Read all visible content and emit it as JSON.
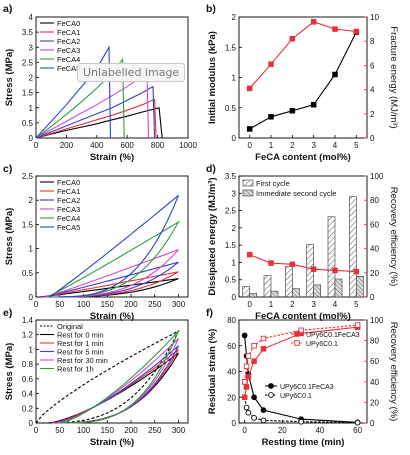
{
  "tooltip": "Unlabelled image",
  "chart_data": [
    {
      "panel": "a)",
      "type": "line",
      "xlabel": "Strain (%)",
      "ylabel": "Stress (MPa)",
      "xlim": [
        0,
        1000
      ],
      "ylim": [
        0,
        4.0
      ],
      "xticks": [
        0,
        200,
        400,
        600,
        800,
        1000
      ],
      "yticks": [
        0,
        0.5,
        1.0,
        1.5,
        2.0,
        2.5,
        3.0,
        3.5,
        4.0
      ],
      "legend_position": "top-left",
      "series": [
        {
          "name": "FeCA0",
          "color": "#000000",
          "x": [
            0,
            100,
            200,
            300,
            400,
            500,
            600,
            700,
            810,
            830
          ],
          "y": [
            0,
            0.13,
            0.25,
            0.36,
            0.47,
            0.6,
            0.72,
            0.86,
            1.0,
            0
          ]
        },
        {
          "name": "FeCA1",
          "color": "#e8303a",
          "x": [
            0,
            100,
            200,
            300,
            400,
            500,
            600,
            700,
            780,
            790
          ],
          "y": [
            0,
            0.15,
            0.3,
            0.45,
            0.6,
            0.75,
            0.92,
            1.1,
            1.28,
            0
          ]
        },
        {
          "name": "FeCA2",
          "color": "#3a3ec8",
          "x": [
            0,
            100,
            200,
            300,
            400,
            500,
            600,
            700,
            770,
            780
          ],
          "y": [
            0,
            0.2,
            0.4,
            0.6,
            0.8,
            1.0,
            1.25,
            1.5,
            1.7,
            0
          ]
        },
        {
          "name": "FeCA3",
          "color": "#d147d8",
          "x": [
            0,
            100,
            200,
            300,
            400,
            500,
            600,
            700,
            730,
            740
          ],
          "y": [
            0,
            0.28,
            0.55,
            0.83,
            1.1,
            1.4,
            1.7,
            2.05,
            2.15,
            0
          ]
        },
        {
          "name": "FeCA4",
          "color": "#2e9e3a",
          "x": [
            0,
            100,
            200,
            300,
            400,
            500,
            570,
            580
          ],
          "y": [
            0,
            0.38,
            0.78,
            1.2,
            1.65,
            2.15,
            2.6,
            0
          ]
        },
        {
          "name": "FeCA5",
          "color": "#2a46c6",
          "x": [
            0,
            100,
            200,
            300,
            400,
            480,
            490
          ],
          "y": [
            0,
            0.55,
            1.1,
            1.7,
            2.3,
            3.0,
            0
          ]
        }
      ]
    },
    {
      "panel": "b)",
      "type": "line",
      "xlabel": "FeCA content (mol%)",
      "ylabel": "Initial modulus (kPa)",
      "ylabel_right": "Fracture energy (MJ/m³)",
      "xlim": [
        -0.5,
        5.5
      ],
      "ylim": [
        0,
        2.0
      ],
      "ylim_right": [
        0,
        10
      ],
      "xticks": [
        0,
        1,
        2,
        3,
        4,
        5
      ],
      "yticks": [
        0,
        0.5,
        1.0,
        1.5,
        2.0
      ],
      "yticks_right": [
        0,
        2,
        4,
        6,
        8,
        10
      ],
      "x": [
        0,
        1,
        2,
        3,
        4,
        5
      ],
      "series": [
        {
          "axis": "left",
          "color": "#000000",
          "marker": "square",
          "values": [
            0.15,
            0.35,
            0.45,
            0.55,
            1.05,
            1.75
          ]
        },
        {
          "axis": "right",
          "color": "#e8303a",
          "marker": "square",
          "values": [
            4.1,
            6.1,
            8.2,
            9.6,
            9.0,
            8.8
          ]
        }
      ]
    },
    {
      "panel": "c)",
      "type": "line",
      "xlabel": "Strain (%)",
      "ylabel": "Stress (MPa)",
      "xlim": [
        0,
        320
      ],
      "ylim": [
        0,
        2.5
      ],
      "xticks": [
        0,
        50,
        100,
        150,
        200,
        250,
        300
      ],
      "yticks": [
        0,
        0.5,
        1.0,
        1.5,
        2.0,
        2.5
      ],
      "legend_position": "top-left",
      "series": [
        {
          "name": "FeCA0",
          "color": "#000000",
          "peak": 0.38
        },
        {
          "name": "FeCA1",
          "color": "#e8303a",
          "peak": 0.52
        },
        {
          "name": "FeCA2",
          "color": "#3a3ec8",
          "peak": 0.72
        },
        {
          "name": "FeCA3",
          "color": "#d147d8",
          "peak": 0.98
        },
        {
          "name": "FeCA4",
          "color": "#2e9e3a",
          "peak": 1.55
        },
        {
          "name": "FeCA5",
          "color": "#2a46c6",
          "peak": 2.1
        }
      ]
    },
    {
      "panel": "d)",
      "type": "bar",
      "xlabel": "FeCA content (mol%)",
      "ylabel": "Dissipated energy (MJ/m³)",
      "ylabel_right": "Recovery efficiency (%)",
      "xlim": [
        -0.5,
        5.5
      ],
      "ylim": [
        0,
        3.5
      ],
      "ylim_right": [
        0,
        100
      ],
      "xticks": [
        0,
        1,
        2,
        3,
        4,
        5
      ],
      "yticks": [
        0,
        0.5,
        1.0,
        1.5,
        2.0,
        2.5,
        3.0,
        3.5
      ],
      "yticks_right": [
        0,
        20,
        40,
        60,
        80,
        100
      ],
      "legend_position": "top-left",
      "categories": [
        0,
        1,
        2,
        3,
        4,
        5
      ],
      "series": [
        {
          "name": "First cycle",
          "values": [
            0.3,
            0.62,
            0.88,
            1.52,
            2.32,
            2.9
          ]
        },
        {
          "name": "Immediate second cycle",
          "values": [
            0.1,
            0.17,
            0.24,
            0.35,
            0.52,
            0.6
          ]
        },
        {
          "axis": "right",
          "color": "#e8303a",
          "marker": "square",
          "values": [
            35,
            28,
            27,
            23,
            22,
            21
          ]
        }
      ]
    },
    {
      "panel": "e)",
      "type": "line",
      "xlabel": "Strain (%)",
      "ylabel": "Stress (MPa)",
      "xlim": [
        0,
        320
      ],
      "ylim": [
        0,
        1.4
      ],
      "xticks": [
        0,
        50,
        100,
        150,
        200,
        250,
        300
      ],
      "yticks": [
        0,
        0.2,
        0.4,
        0.6,
        0.8,
        1.0,
        1.2,
        1.4
      ],
      "legend_position": "top-left",
      "series": [
        {
          "name": "Original",
          "color": "#000000",
          "dash": true,
          "peak": 1.25
        },
        {
          "name": "Rest for 0 min",
          "color": "#000000",
          "peak": 0.95
        },
        {
          "name": "Rest for 1 min",
          "color": "#e8303a",
          "peak": 1.0
        },
        {
          "name": "Rest for 5 min",
          "color": "#3a3ec8",
          "peak": 1.05
        },
        {
          "name": "Rest for 30 min",
          "color": "#d147d8",
          "peak": 1.15
        },
        {
          "name": "Rest for 1h",
          "color": "#2e9e3a",
          "peak": 1.25
        }
      ]
    },
    {
      "panel": "f)",
      "type": "line",
      "xlabel": "Resting time (min)",
      "ylabel": "Residual strain (%)",
      "ylabel_right": "Recovery efficiency (%)",
      "xlim": [
        -3,
        65
      ],
      "ylim": [
        0,
        80
      ],
      "ylim_right": [
        0,
        100
      ],
      "xticks": [
        0,
        20,
        40,
        60
      ],
      "yticks": [
        0,
        20,
        40,
        60,
        80
      ],
      "yticks_right": [
        0,
        20,
        40,
        60,
        80,
        100
      ],
      "x": [
        0,
        1,
        2,
        5,
        10,
        30,
        60
      ],
      "series": [
        {
          "name": "UPy6C0.1FeCA3",
          "axis": "left",
          "color": "#000000",
          "marker": "circle-filled",
          "values": [
            68,
            52,
            38,
            20,
            10,
            3,
            0.5
          ]
        },
        {
          "name": "UPy6C0.1",
          "axis": "left",
          "color": "#000000",
          "marker": "circle-open",
          "values": [
            20,
            12,
            8,
            4,
            2,
            1,
            0.3
          ]
        },
        {
          "name": "UPy6C0.1FeCA3",
          "axis": "right",
          "color": "#e8303a",
          "marker": "square-filled",
          "values": [
            25,
            35,
            45,
            60,
            72,
            87,
            93
          ]
        },
        {
          "name": "UPy6C0.1",
          "axis": "right",
          "color": "#e8303a",
          "marker": "square-open",
          "values": [
            40,
            55,
            65,
            75,
            82,
            90,
            95
          ]
        }
      ]
    }
  ]
}
